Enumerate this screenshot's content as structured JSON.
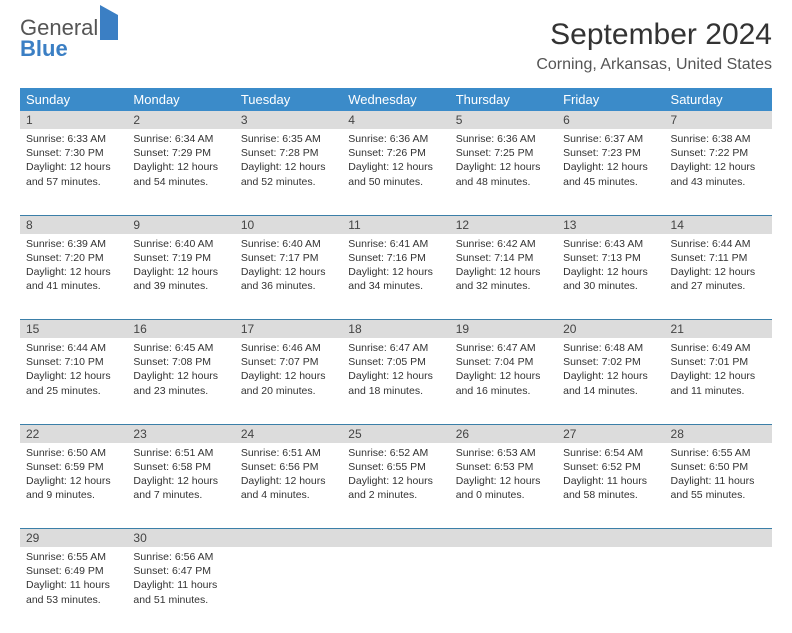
{
  "logo": {
    "general": "General",
    "blue": "Blue"
  },
  "title": "September 2024",
  "location": "Corning, Arkansas, United States",
  "headers": [
    "Sunday",
    "Monday",
    "Tuesday",
    "Wednesday",
    "Thursday",
    "Friday",
    "Saturday"
  ],
  "header_bg": "#3b8bc9",
  "daynum_bg": "#dcdcdc",
  "border_color": "#3b7fa8",
  "weeks": [
    [
      {
        "n": "1",
        "sr": "6:33 AM",
        "ss": "7:30 PM",
        "dl": "12 hours and 57 minutes."
      },
      {
        "n": "2",
        "sr": "6:34 AM",
        "ss": "7:29 PM",
        "dl": "12 hours and 54 minutes."
      },
      {
        "n": "3",
        "sr": "6:35 AM",
        "ss": "7:28 PM",
        "dl": "12 hours and 52 minutes."
      },
      {
        "n": "4",
        "sr": "6:36 AM",
        "ss": "7:26 PM",
        "dl": "12 hours and 50 minutes."
      },
      {
        "n": "5",
        "sr": "6:36 AM",
        "ss": "7:25 PM",
        "dl": "12 hours and 48 minutes."
      },
      {
        "n": "6",
        "sr": "6:37 AM",
        "ss": "7:23 PM",
        "dl": "12 hours and 45 minutes."
      },
      {
        "n": "7",
        "sr": "6:38 AM",
        "ss": "7:22 PM",
        "dl": "12 hours and 43 minutes."
      }
    ],
    [
      {
        "n": "8",
        "sr": "6:39 AM",
        "ss": "7:20 PM",
        "dl": "12 hours and 41 minutes."
      },
      {
        "n": "9",
        "sr": "6:40 AM",
        "ss": "7:19 PM",
        "dl": "12 hours and 39 minutes."
      },
      {
        "n": "10",
        "sr": "6:40 AM",
        "ss": "7:17 PM",
        "dl": "12 hours and 36 minutes."
      },
      {
        "n": "11",
        "sr": "6:41 AM",
        "ss": "7:16 PM",
        "dl": "12 hours and 34 minutes."
      },
      {
        "n": "12",
        "sr": "6:42 AM",
        "ss": "7:14 PM",
        "dl": "12 hours and 32 minutes."
      },
      {
        "n": "13",
        "sr": "6:43 AM",
        "ss": "7:13 PM",
        "dl": "12 hours and 30 minutes."
      },
      {
        "n": "14",
        "sr": "6:44 AM",
        "ss": "7:11 PM",
        "dl": "12 hours and 27 minutes."
      }
    ],
    [
      {
        "n": "15",
        "sr": "6:44 AM",
        "ss": "7:10 PM",
        "dl": "12 hours and 25 minutes."
      },
      {
        "n": "16",
        "sr": "6:45 AM",
        "ss": "7:08 PM",
        "dl": "12 hours and 23 minutes."
      },
      {
        "n": "17",
        "sr": "6:46 AM",
        "ss": "7:07 PM",
        "dl": "12 hours and 20 minutes."
      },
      {
        "n": "18",
        "sr": "6:47 AM",
        "ss": "7:05 PM",
        "dl": "12 hours and 18 minutes."
      },
      {
        "n": "19",
        "sr": "6:47 AM",
        "ss": "7:04 PM",
        "dl": "12 hours and 16 minutes."
      },
      {
        "n": "20",
        "sr": "6:48 AM",
        "ss": "7:02 PM",
        "dl": "12 hours and 14 minutes."
      },
      {
        "n": "21",
        "sr": "6:49 AM",
        "ss": "7:01 PM",
        "dl": "12 hours and 11 minutes."
      }
    ],
    [
      {
        "n": "22",
        "sr": "6:50 AM",
        "ss": "6:59 PM",
        "dl": "12 hours and 9 minutes."
      },
      {
        "n": "23",
        "sr": "6:51 AM",
        "ss": "6:58 PM",
        "dl": "12 hours and 7 minutes."
      },
      {
        "n": "24",
        "sr": "6:51 AM",
        "ss": "6:56 PM",
        "dl": "12 hours and 4 minutes."
      },
      {
        "n": "25",
        "sr": "6:52 AM",
        "ss": "6:55 PM",
        "dl": "12 hours and 2 minutes."
      },
      {
        "n": "26",
        "sr": "6:53 AM",
        "ss": "6:53 PM",
        "dl": "12 hours and 0 minutes."
      },
      {
        "n": "27",
        "sr": "6:54 AM",
        "ss": "6:52 PM",
        "dl": "11 hours and 58 minutes."
      },
      {
        "n": "28",
        "sr": "6:55 AM",
        "ss": "6:50 PM",
        "dl": "11 hours and 55 minutes."
      }
    ],
    [
      {
        "n": "29",
        "sr": "6:55 AM",
        "ss": "6:49 PM",
        "dl": "11 hours and 53 minutes."
      },
      {
        "n": "30",
        "sr": "6:56 AM",
        "ss": "6:47 PM",
        "dl": "11 hours and 51 minutes."
      },
      null,
      null,
      null,
      null,
      null
    ]
  ],
  "labels": {
    "sunrise": "Sunrise:",
    "sunset": "Sunset:",
    "daylight": "Daylight:"
  }
}
